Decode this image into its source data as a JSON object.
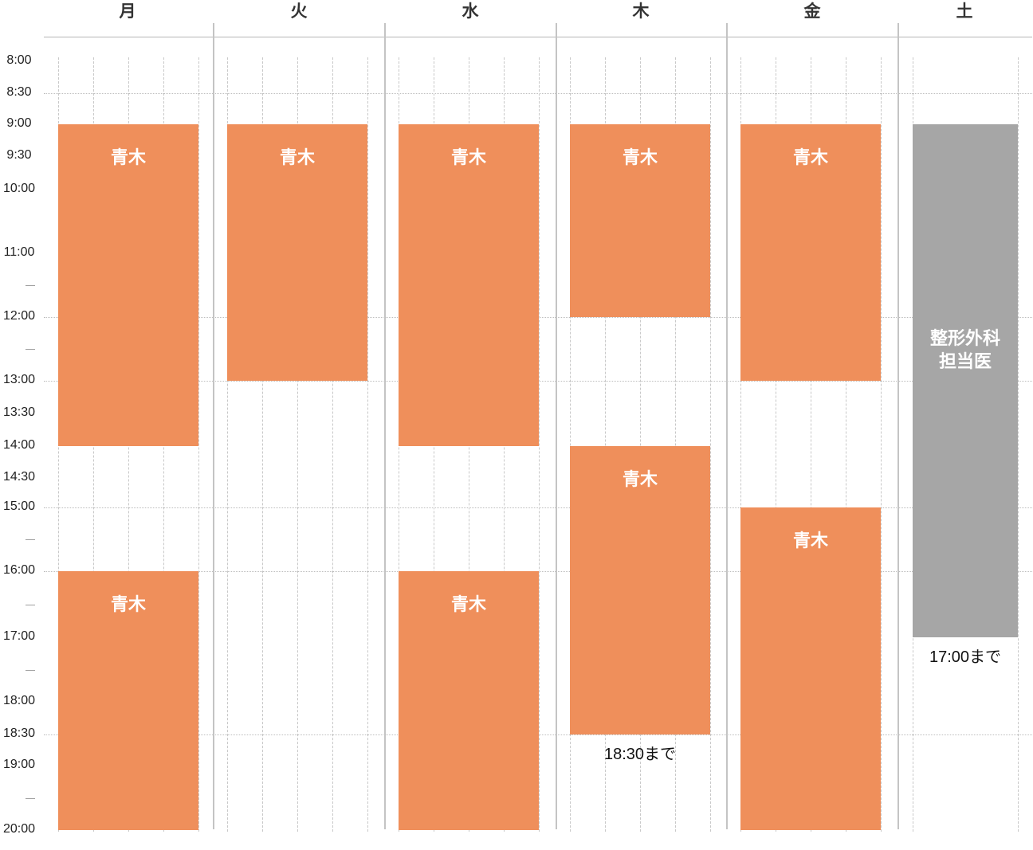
{
  "days": [
    {
      "label": "月"
    },
    {
      "label": "火"
    },
    {
      "label": "水"
    },
    {
      "label": "木"
    },
    {
      "label": "金"
    },
    {
      "label": "土"
    }
  ],
  "time_labels": [
    {
      "text": "8:00",
      "t": 8.0
    },
    {
      "text": "8:30",
      "t": 8.5
    },
    {
      "text": "9:00",
      "t": 9.0
    },
    {
      "text": "9:30",
      "t": 9.5
    },
    {
      "text": "10:00",
      "t": 10.0
    },
    {
      "text": "11:00",
      "t": 11.0
    },
    {
      "text": "12:00",
      "t": 12.0
    },
    {
      "text": "13:00",
      "t": 13.0
    },
    {
      "text": "13:30",
      "t": 13.5
    },
    {
      "text": "14:00",
      "t": 14.0
    },
    {
      "text": "14:30",
      "t": 14.5
    },
    {
      "text": "15:00",
      "t": 15.0
    },
    {
      "text": "16:00",
      "t": 16.0
    },
    {
      "text": "17:00",
      "t": 17.0
    },
    {
      "text": "18:00",
      "t": 18.0
    },
    {
      "text": "18:30",
      "t": 18.5
    },
    {
      "text": "19:00",
      "t": 19.0
    },
    {
      "text": "20:00",
      "t": 20.0
    }
  ],
  "tick_times": [
    11.5,
    12.5,
    15.5,
    16.5,
    17.5,
    19.5
  ],
  "blocks": [
    {
      "day": 0,
      "start": 9.0,
      "end": 14.0,
      "label": "青木",
      "color": "#ef8f5b"
    },
    {
      "day": 0,
      "start": 16.0,
      "end": 20.0,
      "label": "青木",
      "color": "#ef8f5b"
    },
    {
      "day": 1,
      "start": 9.0,
      "end": 13.0,
      "label": "青木",
      "color": "#ef8f5b"
    },
    {
      "day": 2,
      "start": 9.0,
      "end": 14.0,
      "label": "青木",
      "color": "#ef8f5b"
    },
    {
      "day": 2,
      "start": 16.0,
      "end": 20.0,
      "label": "青木",
      "color": "#ef8f5b"
    },
    {
      "day": 3,
      "start": 9.0,
      "end": 12.0,
      "label": "青木",
      "color": "#ef8f5b"
    },
    {
      "day": 3,
      "start": 14.0,
      "end": 18.5,
      "label": "青木",
      "color": "#ef8f5b",
      "note": "18:30まで"
    },
    {
      "day": 4,
      "start": 9.0,
      "end": 13.0,
      "label": "青木",
      "color": "#ef8f5b"
    },
    {
      "day": 4,
      "start": 15.0,
      "end": 20.0,
      "label": "青木",
      "color": "#ef8f5b"
    },
    {
      "day": 5,
      "start": 9.0,
      "end": 17.0,
      "label": "整形外科\n担当医",
      "color": "#a6a6a6",
      "note": "17:00まで"
    }
  ]
}
